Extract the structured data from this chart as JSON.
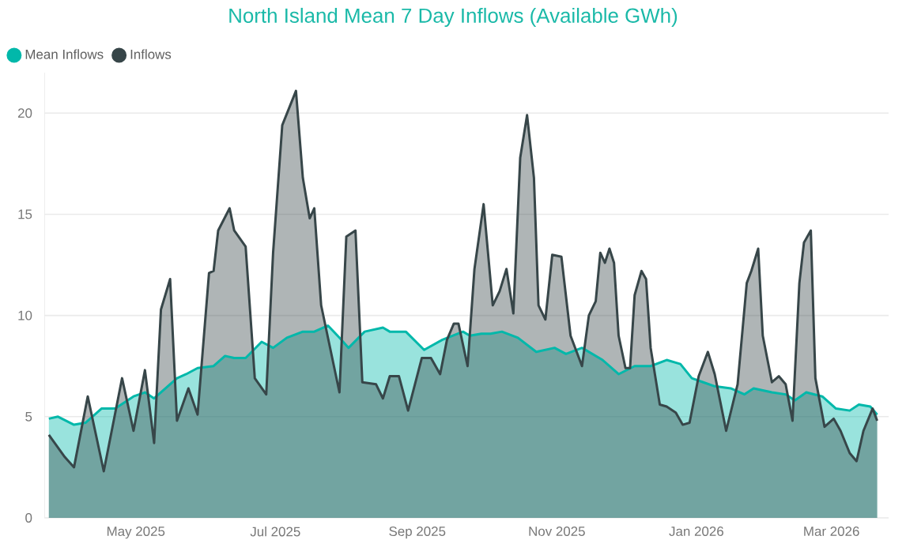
{
  "chart_data": {
    "type": "area",
    "title": "North Island Mean 7 Day Inflows (Available GWh)",
    "legend": "top left",
    "grid": "y",
    "xlim": [
      "2025-03-22",
      "2026-03-26"
    ],
    "ylim": [
      0,
      22
    ],
    "xticks": [
      {
        "value": "2025-05-01",
        "label": "May 2025"
      },
      {
        "value": "2025-07-01",
        "label": "Jul 2025"
      },
      {
        "value": "2025-09-01",
        "label": "Sep 2025"
      },
      {
        "value": "2025-11-01",
        "label": "Nov 2025"
      },
      {
        "value": "2026-01-01",
        "label": "Jan 2026"
      },
      {
        "value": "2026-03-01",
        "label": "Mar 2026"
      }
    ],
    "yticks": [
      0,
      5,
      10,
      15,
      20
    ],
    "series": [
      {
        "name": "Mean Inflows",
        "color": "#01b8aa",
        "x": [
          "2025-03-24",
          "2025-03-28",
          "2025-04-04",
          "2025-04-09",
          "2025-04-16",
          "2025-04-22",
          "2025-04-30",
          "2025-05-05",
          "2025-05-09",
          "2025-05-14",
          "2025-05-19",
          "2025-05-23",
          "2025-05-28",
          "2025-06-04",
          "2025-06-09",
          "2025-06-13",
          "2025-06-18",
          "2025-06-25",
          "2025-06-30",
          "2025-07-06",
          "2025-07-13",
          "2025-07-18",
          "2025-07-24",
          "2025-07-29",
          "2025-08-02",
          "2025-08-09",
          "2025-08-17",
          "2025-08-20",
          "2025-08-27",
          "2025-09-04",
          "2025-09-12",
          "2025-09-21",
          "2025-09-24",
          "2025-09-29",
          "2025-10-03",
          "2025-10-08",
          "2025-10-15",
          "2025-10-23",
          "2025-10-31",
          "2025-11-05",
          "2025-11-12",
          "2025-11-21",
          "2025-11-28",
          "2025-12-05",
          "2025-12-12",
          "2025-12-19",
          "2025-12-25",
          "2025-12-30",
          "2026-01-04",
          "2026-01-09",
          "2026-01-16",
          "2026-01-22",
          "2026-01-26",
          "2026-02-03",
          "2026-02-09",
          "2026-02-13",
          "2026-02-18",
          "2026-02-25",
          "2026-03-03",
          "2026-03-09",
          "2026-03-13",
          "2026-03-18",
          "2026-03-21"
        ],
        "values": [
          4.9,
          5.0,
          4.6,
          4.7,
          5.4,
          5.4,
          6.0,
          6.2,
          5.9,
          6.4,
          6.9,
          7.1,
          7.4,
          7.5,
          8.0,
          7.9,
          7.9,
          8.7,
          8.4,
          8.9,
          9.2,
          9.2,
          9.5,
          8.9,
          8.4,
          9.2,
          9.4,
          9.2,
          9.2,
          8.3,
          8.8,
          9.2,
          9.0,
          9.1,
          9.1,
          9.2,
          8.9,
          8.2,
          8.4,
          8.1,
          8.4,
          7.8,
          7.1,
          7.5,
          7.5,
          7.8,
          7.6,
          6.9,
          6.7,
          6.5,
          6.4,
          6.1,
          6.4,
          6.2,
          6.1,
          5.8,
          6.2,
          6.0,
          5.4,
          5.3,
          5.6,
          5.5,
          5.1
        ]
      },
      {
        "name": "Inflows",
        "color": "#374649",
        "x": [
          "2025-03-24",
          "2025-03-31",
          "2025-04-04",
          "2025-04-10",
          "2025-04-17",
          "2025-04-25",
          "2025-04-30",
          "2025-05-05",
          "2025-05-09",
          "2025-05-12",
          "2025-05-16",
          "2025-05-19",
          "2025-05-24",
          "2025-05-28",
          "2025-06-02",
          "2025-06-04",
          "2025-06-06",
          "2025-06-11",
          "2025-06-13",
          "2025-06-18",
          "2025-06-22",
          "2025-06-27",
          "2025-06-30",
          "2025-07-04",
          "2025-07-10",
          "2025-07-13",
          "2025-07-16",
          "2025-07-18",
          "2025-07-21",
          "2025-07-29",
          "2025-08-01",
          "2025-08-05",
          "2025-08-08",
          "2025-08-14",
          "2025-08-17",
          "2025-08-20",
          "2025-08-24",
          "2025-08-28",
          "2025-09-03",
          "2025-09-07",
          "2025-09-11",
          "2025-09-14",
          "2025-09-17",
          "2025-09-19",
          "2025-09-23",
          "2025-09-26",
          "2025-09-30",
          "2025-10-04",
          "2025-10-07",
          "2025-10-10",
          "2025-10-13",
          "2025-10-16",
          "2025-10-19",
          "2025-10-22",
          "2025-10-24",
          "2025-10-27",
          "2025-10-30",
          "2025-11-03",
          "2025-11-07",
          "2025-11-12",
          "2025-11-15",
          "2025-11-18",
          "2025-11-20",
          "2025-11-22",
          "2025-11-24",
          "2025-11-26",
          "2025-11-28",
          "2025-12-01",
          "2025-12-03",
          "2025-12-05",
          "2025-12-08",
          "2025-12-10",
          "2025-12-12",
          "2025-12-16",
          "2025-12-19",
          "2025-12-23",
          "2025-12-26",
          "2025-12-29",
          "2026-01-02",
          "2026-01-06",
          "2026-01-09",
          "2026-01-14",
          "2026-01-19",
          "2026-01-23",
          "2026-01-25",
          "2026-01-28",
          "2026-01-30",
          "2026-02-03",
          "2026-02-06",
          "2026-02-09",
          "2026-02-12",
          "2026-02-15",
          "2026-02-17",
          "2026-02-20",
          "2026-02-22",
          "2026-02-26",
          "2026-03-02",
          "2026-03-05",
          "2026-03-09",
          "2026-03-12",
          "2026-03-15",
          "2026-03-19",
          "2026-03-21"
        ],
        "values": [
          4.1,
          3.0,
          2.5,
          6.0,
          2.3,
          6.9,
          4.3,
          7.3,
          3.7,
          10.3,
          11.8,
          4.8,
          6.4,
          5.1,
          12.1,
          12.2,
          14.2,
          15.3,
          14.2,
          13.4,
          6.9,
          6.1,
          13.1,
          19.4,
          21.1,
          16.8,
          14.8,
          15.3,
          10.5,
          6.2,
          13.9,
          14.2,
          6.7,
          6.6,
          5.9,
          7.0,
          7.0,
          5.3,
          7.9,
          7.9,
          7.1,
          8.8,
          9.6,
          9.6,
          7.5,
          12.3,
          15.5,
          10.5,
          11.2,
          12.3,
          10.1,
          17.8,
          19.9,
          16.8,
          10.5,
          9.8,
          13.0,
          12.9,
          9.0,
          7.5,
          10.0,
          10.7,
          13.1,
          12.6,
          13.3,
          12.6,
          9.0,
          7.4,
          7.4,
          11.0,
          12.2,
          11.8,
          8.4,
          5.6,
          5.5,
          5.2,
          4.6,
          4.7,
          7.0,
          8.2,
          7.1,
          4.3,
          6.6,
          11.6,
          12.2,
          13.3,
          9.0,
          6.7,
          7.0,
          6.6,
          4.8,
          11.6,
          13.6,
          14.2,
          6.9,
          4.5,
          4.9,
          4.3,
          3.2,
          2.8,
          4.3,
          5.4,
          4.8
        ]
      }
    ]
  }
}
